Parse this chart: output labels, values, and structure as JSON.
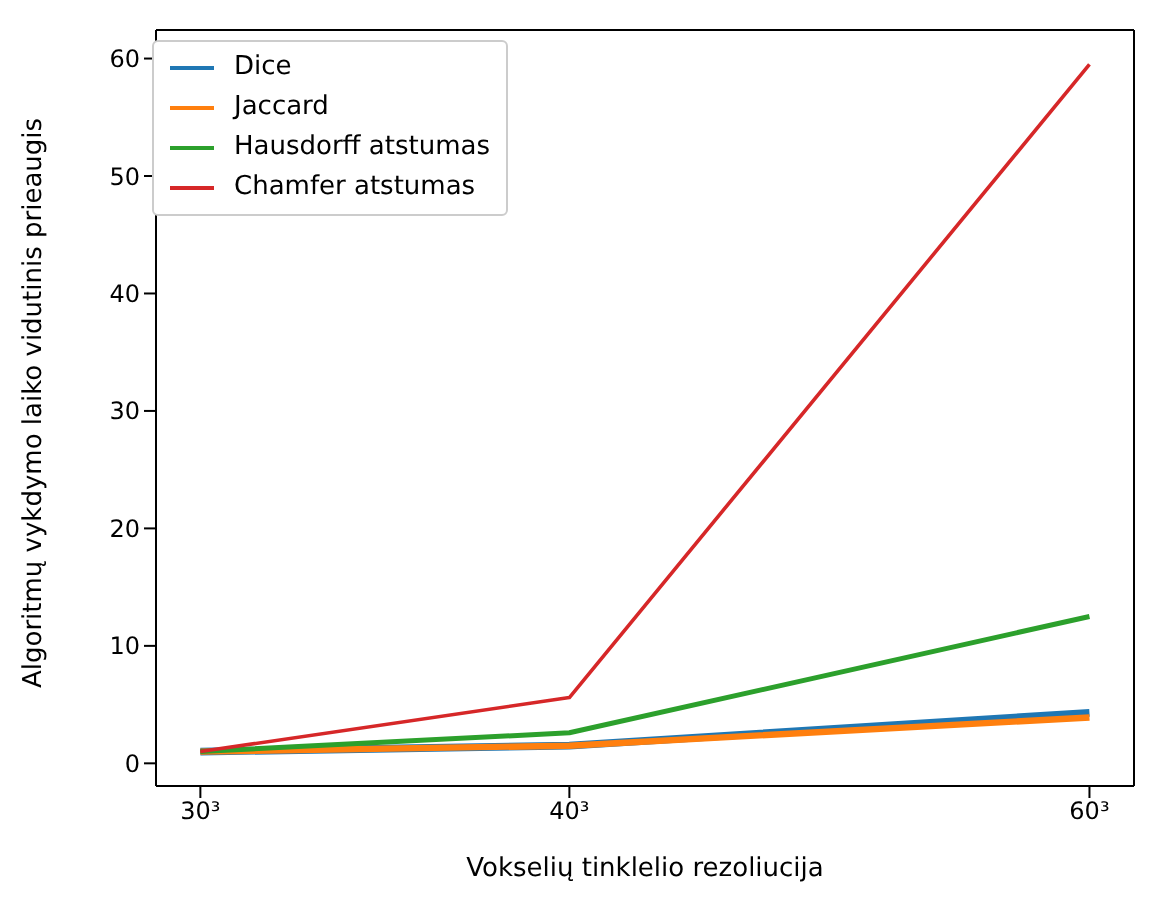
{
  "chart_data": {
    "type": "line",
    "xlabel": "Vokselių tinklelio rezoliucija",
    "ylabel": "Algoritmų vykdymo laiko vidutinis prieaugis",
    "x": [
      30,
      40,
      60
    ],
    "log": "x",
    "xlim": [
      28.98,
      62.12
    ],
    "xticks": [
      {
        "value": 30,
        "label": "30³"
      },
      {
        "value": 40,
        "label": "40³"
      },
      {
        "value": 60,
        "label": "60³"
      }
    ],
    "ylim": [
      -1.93,
      62.43
    ],
    "yticks": [
      0,
      10,
      20,
      30,
      40,
      50,
      60
    ],
    "grid": false,
    "legend": "top left",
    "marker": "none",
    "line_style": "solid",
    "series": [
      {
        "name": "Dice",
        "color": "#1f77b4",
        "values": [
          1,
          1.5,
          4.3
        ]
      },
      {
        "name": "Jaccard",
        "color": "#ff7f0e",
        "values": [
          1,
          1.5,
          3.9
        ]
      },
      {
        "name": "Hausdorff atstumas",
        "color": "#2ca02c",
        "values": [
          1,
          2.6,
          12.5
        ]
      },
      {
        "name": "Chamfer atstumas",
        "color": "#d62728",
        "values": [
          1,
          5.6,
          59.5
        ]
      }
    ]
  }
}
